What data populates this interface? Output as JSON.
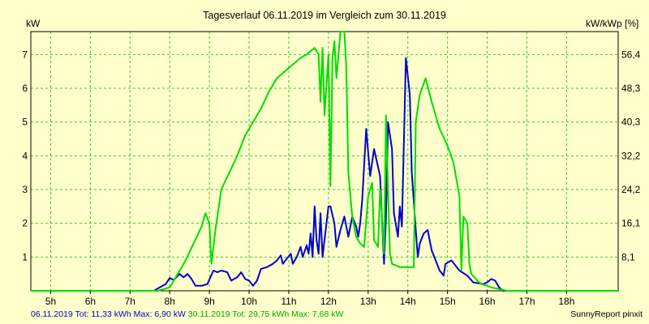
{
  "chart_data": {
    "type": "line",
    "title": "Tagesverlauf 06.11.2019 im Vergleich zum 30.11.2019",
    "y_left_unit": "kW",
    "y_right_unit": "kW/kWp [%]",
    "x_ticks": [
      "5h",
      "6h",
      "7h",
      "8h",
      "9h",
      "10h",
      "11h",
      "12h",
      "13h",
      "14h",
      "15h",
      "16h",
      "17h",
      "18h"
    ],
    "x_range": [
      4.5,
      19.3
    ],
    "y_ticks_left": [
      "1",
      "2",
      "3",
      "4",
      "5",
      "6",
      "7"
    ],
    "y_ticks_right": [
      "8,1",
      "16,1",
      "24,2",
      "32,2",
      "40,3",
      "48,3",
      "56,4"
    ],
    "ylim": [
      0,
      7.68
    ],
    "grid": true,
    "series": [
      {
        "name": "06.11.2019",
        "color": "#0000cc",
        "points": [
          [
            4.5,
            0
          ],
          [
            7.6,
            0
          ],
          [
            7.75,
            0.1
          ],
          [
            7.9,
            0.2
          ],
          [
            8.0,
            0.38
          ],
          [
            8.1,
            0.32
          ],
          [
            8.25,
            0.5
          ],
          [
            8.35,
            0.4
          ],
          [
            8.45,
            0.5
          ],
          [
            8.55,
            0.35
          ],
          [
            8.65,
            0.15
          ],
          [
            8.8,
            0.15
          ],
          [
            8.95,
            0.2
          ],
          [
            9.1,
            0.6
          ],
          [
            9.2,
            0.55
          ],
          [
            9.3,
            0.6
          ],
          [
            9.45,
            0.55
          ],
          [
            9.55,
            0.3
          ],
          [
            9.7,
            0.4
          ],
          [
            9.8,
            0.55
          ],
          [
            9.9,
            0.35
          ],
          [
            10.0,
            0.3
          ],
          [
            10.1,
            0.15
          ],
          [
            10.2,
            0.3
          ],
          [
            10.3,
            0.65
          ],
          [
            10.45,
            0.7
          ],
          [
            10.6,
            0.8
          ],
          [
            10.7,
            0.9
          ],
          [
            10.8,
            1.05
          ],
          [
            10.85,
            0.8
          ],
          [
            10.95,
            0.95
          ],
          [
            11.05,
            1.1
          ],
          [
            11.1,
            0.8
          ],
          [
            11.2,
            1.0
          ],
          [
            11.3,
            1.3
          ],
          [
            11.35,
            1.0
          ],
          [
            11.45,
            1.35
          ],
          [
            11.5,
            1.1
          ],
          [
            11.55,
            1.7
          ],
          [
            11.6,
            1.0
          ],
          [
            11.65,
            2.5
          ],
          [
            11.7,
            1.5
          ],
          [
            11.75,
            1.1
          ],
          [
            11.8,
            2.3
          ],
          [
            11.85,
            1.0
          ],
          [
            11.9,
            1.5
          ],
          [
            12.0,
            2.5
          ],
          [
            12.05,
            2.5
          ],
          [
            12.15,
            2.0
          ],
          [
            12.2,
            1.3
          ],
          [
            12.3,
            1.8
          ],
          [
            12.4,
            2.2
          ],
          [
            12.5,
            1.6
          ],
          [
            12.6,
            2.2
          ],
          [
            12.7,
            1.9
          ],
          [
            12.75,
            1.6
          ],
          [
            12.8,
            2.0
          ],
          [
            12.85,
            2.7
          ],
          [
            12.95,
            4.8
          ],
          [
            13.05,
            3.4
          ],
          [
            13.15,
            4.2
          ],
          [
            13.3,
            3.4
          ],
          [
            13.4,
            0.8
          ],
          [
            13.45,
            2.2
          ],
          [
            13.5,
            5.0
          ],
          [
            13.6,
            4.2
          ],
          [
            13.65,
            2.3
          ],
          [
            13.75,
            1.6
          ],
          [
            13.8,
            2.5
          ],
          [
            13.85,
            1.9
          ],
          [
            13.95,
            6.9
          ],
          [
            14.05,
            5.8
          ],
          [
            14.1,
            3.5
          ],
          [
            14.2,
            1.8
          ],
          [
            14.25,
            1.0
          ],
          [
            14.3,
            1.4
          ],
          [
            14.4,
            1.7
          ],
          [
            14.5,
            1.8
          ],
          [
            14.6,
            1.2
          ],
          [
            14.7,
            0.9
          ],
          [
            14.8,
            0.6
          ],
          [
            14.9,
            0.45
          ],
          [
            14.95,
            0.8
          ],
          [
            15.1,
            0.9
          ],
          [
            15.3,
            0.6
          ],
          [
            15.5,
            0.45
          ],
          [
            15.65,
            0.25
          ],
          [
            15.9,
            0.2
          ],
          [
            16.0,
            0.25
          ],
          [
            16.1,
            0.35
          ],
          [
            16.2,
            0.3
          ],
          [
            16.3,
            0.1
          ],
          [
            16.4,
            0
          ],
          [
            19.3,
            0
          ]
        ]
      },
      {
        "name": "30.11.2019",
        "color": "#00dd00",
        "points": [
          [
            4.5,
            0
          ],
          [
            7.7,
            0
          ],
          [
            8.0,
            0.1
          ],
          [
            8.2,
            0.5
          ],
          [
            8.4,
            0.9
          ],
          [
            8.6,
            1.4
          ],
          [
            8.8,
            1.9
          ],
          [
            8.9,
            2.3
          ],
          [
            9.0,
            2.0
          ],
          [
            9.05,
            0.8
          ],
          [
            9.15,
            1.8
          ],
          [
            9.3,
            3.0
          ],
          [
            9.5,
            3.5
          ],
          [
            9.7,
            4.0
          ],
          [
            9.9,
            4.6
          ],
          [
            10.1,
            5.0
          ],
          [
            10.3,
            5.4
          ],
          [
            10.5,
            5.9
          ],
          [
            10.7,
            6.3
          ],
          [
            10.9,
            6.5
          ],
          [
            11.1,
            6.7
          ],
          [
            11.3,
            6.9
          ],
          [
            11.45,
            7.0
          ],
          [
            11.55,
            7.1
          ],
          [
            11.65,
            7.2
          ],
          [
            11.75,
            7.0
          ],
          [
            11.8,
            5.6
          ],
          [
            11.85,
            7.2
          ],
          [
            11.9,
            5.2
          ],
          [
            12.0,
            7.0
          ],
          [
            12.05,
            3.1
          ],
          [
            12.1,
            6.9
          ],
          [
            12.15,
            7.4
          ],
          [
            12.2,
            6.3
          ],
          [
            12.3,
            7.68
          ],
          [
            12.4,
            7.68
          ],
          [
            12.45,
            6.6
          ],
          [
            12.5,
            3.5
          ],
          [
            12.6,
            2.2
          ],
          [
            12.7,
            1.6
          ],
          [
            12.8,
            1.4
          ],
          [
            12.9,
            1.3
          ],
          [
            13.0,
            2.8
          ],
          [
            13.1,
            3.2
          ],
          [
            13.15,
            1.5
          ],
          [
            13.25,
            1.3
          ],
          [
            13.3,
            3.0
          ],
          [
            13.35,
            2.2
          ],
          [
            13.4,
            1.1
          ],
          [
            13.45,
            5.2
          ],
          [
            13.5,
            3.0
          ],
          [
            13.55,
            1.1
          ],
          [
            13.6,
            0.8
          ],
          [
            13.8,
            0.7
          ],
          [
            14.0,
            0.7
          ],
          [
            14.15,
            0.7
          ],
          [
            14.2,
            5.0
          ],
          [
            14.3,
            5.8
          ],
          [
            14.45,
            6.3
          ],
          [
            14.6,
            5.6
          ],
          [
            14.8,
            4.8
          ],
          [
            15.0,
            4.3
          ],
          [
            15.15,
            3.8
          ],
          [
            15.3,
            2.8
          ],
          [
            15.35,
            0.6
          ],
          [
            15.4,
            2.2
          ],
          [
            15.5,
            2.0
          ],
          [
            15.55,
            0.8
          ],
          [
            15.6,
            0.5
          ],
          [
            15.75,
            0.3
          ],
          [
            15.85,
            0.2
          ],
          [
            16.0,
            0.15
          ],
          [
            16.1,
            0.1
          ],
          [
            16.3,
            0.05
          ],
          [
            16.5,
            0
          ],
          [
            19.3,
            0
          ]
        ]
      }
    ]
  },
  "footer": {
    "series1_text": "06.11.2019 Tot: 11,33 kWh Max: 6,90 kW",
    "series1_color": "#0000cc",
    "series2_text": "30.11.2019 Tot: 29,75 kWh Max: 7,68 kW",
    "series2_color": "#00aa00",
    "brand": "SunnyReport pinxit"
  }
}
